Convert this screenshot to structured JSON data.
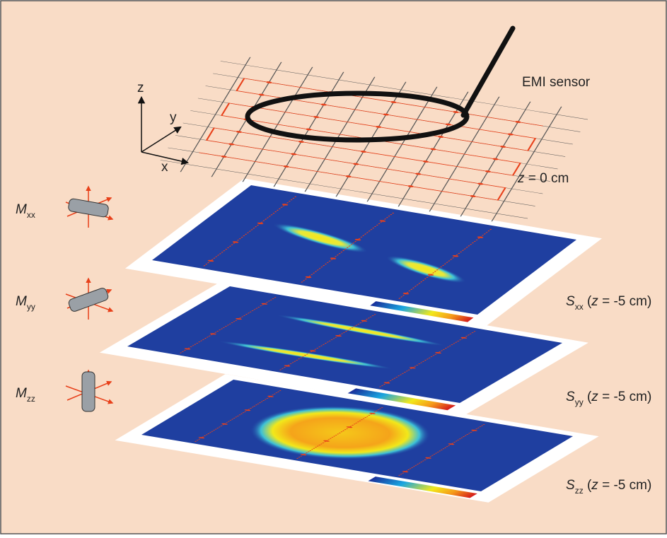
{
  "axes": {
    "z": "z",
    "y": "y",
    "x": "x"
  },
  "sensor_label": "EMI sensor",
  "plane_label": {
    "variable": "z",
    "rest": " = 0 cm"
  },
  "moments": [
    {
      "symbol": "M",
      "subscript": "xx"
    },
    {
      "symbol": "M",
      "subscript": "yy"
    },
    {
      "symbol": "M",
      "subscript": "zz"
    }
  ],
  "responses": [
    {
      "symbol": "S",
      "subscript": "xx",
      "open": " (",
      "variable": "z",
      "rest": " = -5 cm)"
    },
    {
      "symbol": "S",
      "subscript": "yy",
      "open": " (",
      "variable": "z",
      "rest": " = -5 cm)"
    },
    {
      "symbol": "S",
      "subscript": "zz",
      "open": " (",
      "variable": "z",
      "rest": " = -5 cm)"
    }
  ]
}
